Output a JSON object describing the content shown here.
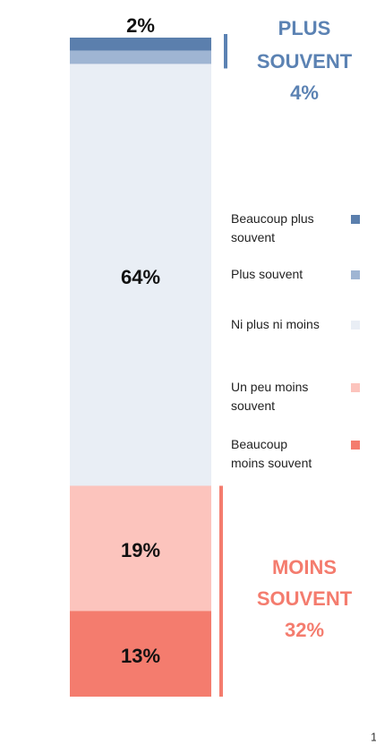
{
  "chart_data": {
    "type": "stacked_bar",
    "series": [
      {
        "name": "Beaucoup plus souvent",
        "color": "#5b7fad",
        "values": [
          2
        ],
        "value_labels": [
          "2%"
        ]
      },
      {
        "name": "Plus souvent",
        "color": "#9fb5d3",
        "values": [
          2
        ],
        "value_labels": [
          "2%"
        ]
      },
      {
        "name": "Ni plus ni moins",
        "color": "#e9eef5",
        "values": [
          64
        ],
        "value_labels": [
          "64%"
        ]
      },
      {
        "name": "Un peu moins souvent",
        "color": "#fcc4bd",
        "values": [
          19
        ],
        "value_labels": [
          "19%"
        ]
      },
      {
        "name": "Beaucoup moins souvent",
        "color": "#f47c6e",
        "values": [
          13
        ],
        "value_labels": [
          "13%"
        ]
      }
    ],
    "ylim": [
      0,
      100
    ],
    "annotations": [
      {
        "lines": [
          "PLUS",
          "SOUVENT",
          "4%"
        ],
        "color": "#5b82b3"
      },
      {
        "lines": [
          "MOINS",
          "SOUVENT",
          "32%"
        ],
        "color": "#f47c6e"
      }
    ],
    "page_number": "1"
  }
}
